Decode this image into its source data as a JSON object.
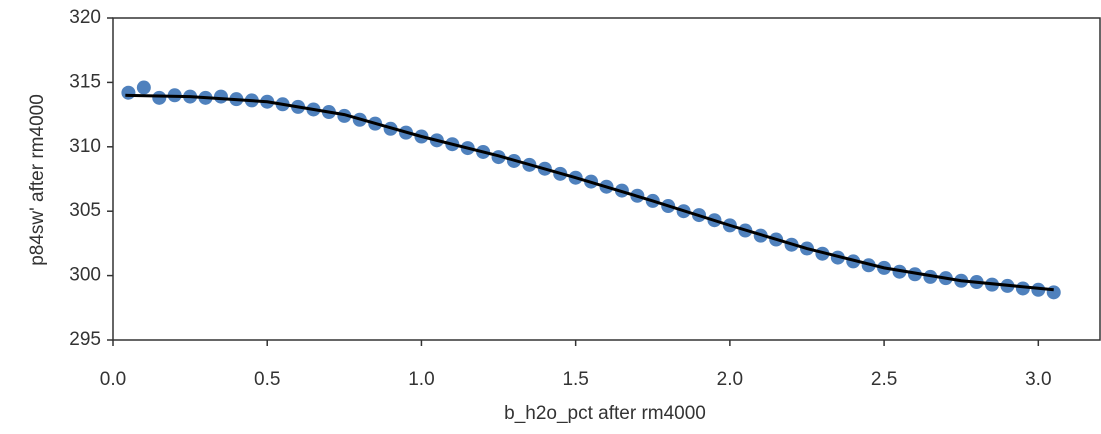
{
  "chart_data": {
    "type": "scatter",
    "x_label": "b_h2o_pct after rm4000",
    "y_label": "p84sw' after rm4000",
    "xlim": [
      0,
      3.2
    ],
    "xticks": [
      {
        "value": 0,
        "label": "0.0"
      },
      0.5,
      {
        "value": 1,
        "label": "1.0"
      },
      1.5,
      {
        "value": 2,
        "label": "2.0"
      },
      2.5,
      {
        "value": 3,
        "label": "3.0"
      }
    ],
    "ylim": [
      295,
      320
    ],
    "yticks": [
      295,
      300,
      305,
      310,
      315,
      320
    ],
    "grid": false,
    "series": [
      {
        "color": "#4f81bd",
        "style": "markers",
        "x": [
          0.05,
          0.1,
          0.15,
          0.2,
          0.25,
          0.3,
          0.35,
          0.4,
          0.45,
          0.5,
          0.55,
          0.6,
          0.65,
          0.7,
          0.75,
          0.8,
          0.85,
          0.9,
          0.95,
          1.0,
          1.05,
          1.1,
          1.15,
          1.2,
          1.25,
          1.3,
          1.35,
          1.4,
          1.45,
          1.5,
          1.55,
          1.6,
          1.65,
          1.7,
          1.75,
          1.8,
          1.85,
          1.9,
          1.95,
          2.0,
          2.05,
          2.1,
          2.15,
          2.2,
          2.25,
          2.3,
          2.35,
          2.4,
          2.45,
          2.5,
          2.55,
          2.6,
          2.65,
          2.7,
          2.75,
          2.8,
          2.85,
          2.9,
          2.95,
          3.0,
          3.05
        ],
        "values": [
          314.2,
          314.6,
          313.8,
          314.0,
          313.9,
          313.8,
          313.9,
          313.7,
          313.6,
          313.5,
          313.3,
          313.1,
          312.9,
          312.7,
          312.4,
          312.1,
          311.8,
          311.4,
          311.1,
          310.8,
          310.5,
          310.2,
          309.9,
          309.6,
          309.2,
          308.9,
          308.6,
          308.3,
          307.9,
          307.6,
          307.3,
          306.9,
          306.6,
          306.2,
          305.8,
          305.4,
          305.0,
          304.7,
          304.3,
          303.9,
          303.5,
          303.1,
          302.8,
          302.4,
          302.1,
          301.7,
          301.4,
          301.1,
          300.8,
          300.6,
          300.3,
          300.1,
          299.9,
          299.8,
          299.6,
          299.5,
          299.3,
          299.2,
          299.0,
          298.9,
          298.7
        ]
      },
      {
        "color": "#000000",
        "style": "line",
        "x": [
          0.04,
          0.25,
          0.5,
          0.75,
          1.0,
          1.25,
          1.5,
          1.75,
          2.0,
          2.25,
          2.5,
          2.75,
          3.05
        ],
        "values": [
          314.0,
          313.9,
          313.5,
          312.5,
          310.8,
          309.3,
          307.6,
          305.8,
          303.9,
          302.1,
          300.6,
          299.6,
          298.9
        ]
      }
    ]
  }
}
